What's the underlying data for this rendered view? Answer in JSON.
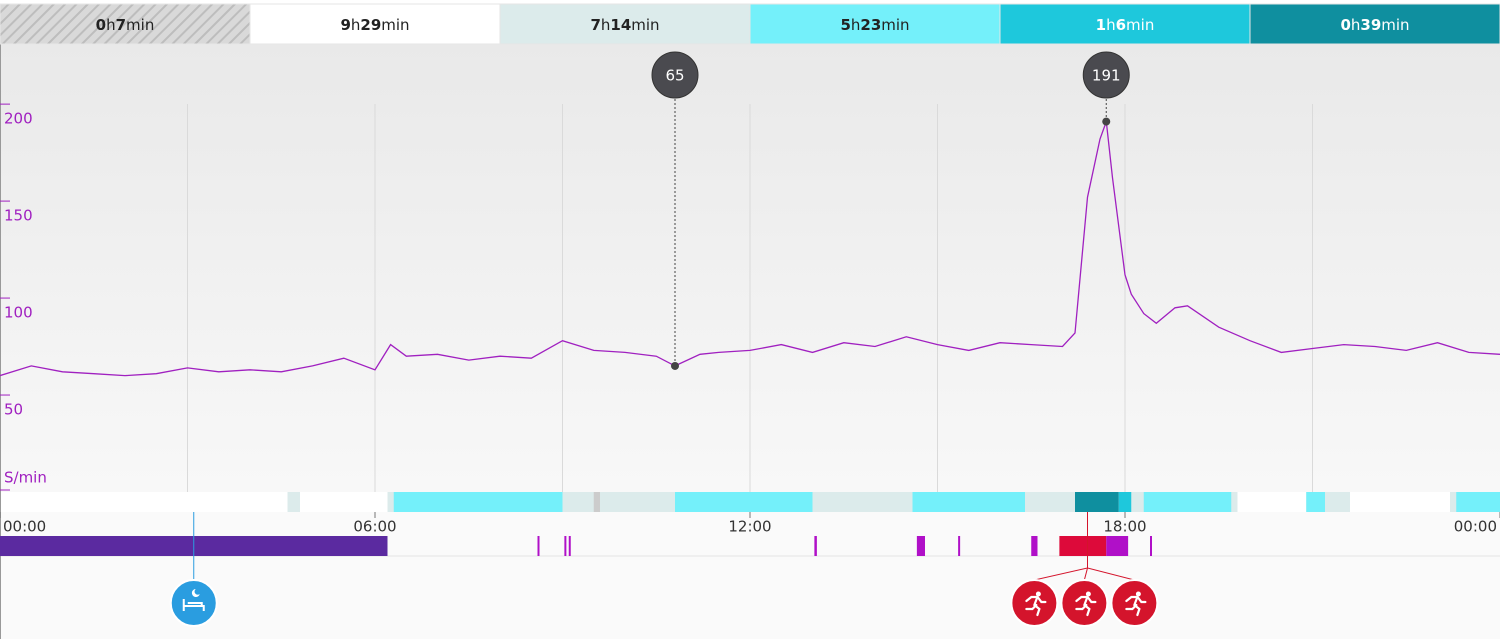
{
  "chart_data": {
    "type": "line",
    "zones": [
      {
        "label": "0h7min",
        "color": "hatch",
        "text": "#222"
      },
      {
        "label": "9h29min",
        "color": "#ffffff",
        "text": "#222"
      },
      {
        "label": "7h14min",
        "color": "#dcebeb",
        "text": "#222"
      },
      {
        "label": "5h23min",
        "color": "#74f0fa",
        "text": "#222"
      },
      {
        "label": "1h6min",
        "color": "#1ec8dc",
        "text": "#ffffff"
      },
      {
        "label": "0h39min",
        "color": "#0f8f9f",
        "text": "#ffffff"
      }
    ],
    "y_label": "S/min",
    "color": "#a020c0",
    "x": [
      0,
      0.5,
      1,
      1.5,
      2,
      2.5,
      3,
      3.5,
      4,
      4.5,
      5,
      5.5,
      6,
      6.25,
      6.5,
      7,
      7.5,
      8,
      8.5,
      9,
      9.5,
      10,
      10.5,
      10.8,
      11.2,
      11.5,
      12,
      12.5,
      13,
      13.5,
      14,
      14.5,
      15,
      15.5,
      16,
      16.5,
      17,
      17.2,
      17.4,
      17.6,
      17.7,
      17.8,
      18,
      18.1,
      18.3,
      18.5,
      18.8,
      19,
      19.5,
      20,
      20.5,
      21,
      21.5,
      22,
      22.5,
      23,
      23.5,
      24
    ],
    "values": [
      60,
      65,
      62,
      61,
      60,
      61,
      64,
      62,
      63,
      62,
      65,
      69,
      63,
      76,
      70,
      71,
      68,
      70,
      69,
      78,
      73,
      72,
      70,
      65,
      71,
      72,
      73,
      76,
      72,
      77,
      75,
      80,
      76,
      73,
      77,
      76,
      75,
      82,
      152,
      182,
      191,
      162,
      112,
      102,
      92,
      87,
      95,
      96,
      85,
      78,
      72,
      74,
      76,
      75,
      73,
      77,
      72,
      71
    ],
    "xlim": [
      0,
      24
    ],
    "xticks": [
      {
        "value": 0,
        "label": "00:00"
      },
      {
        "value": 6,
        "label": "06:00"
      },
      {
        "value": 12,
        "label": "12:00"
      },
      {
        "value": 18,
        "label": "18:00"
      },
      {
        "value": 24,
        "label": "00:00"
      }
    ],
    "ylim": [
      0,
      231
    ],
    "yticks": [
      50,
      100,
      150,
      200
    ],
    "markers": [
      {
        "x": 10.8,
        "value": 65
      },
      {
        "x": 17.7,
        "value": 191
      }
    ],
    "strip": [
      [
        4.6,
        4.8,
        "#dcebeb"
      ],
      [
        6.2,
        24,
        "#dcebeb"
      ],
      [
        6.3,
        9,
        "#74f0fa"
      ],
      [
        9.5,
        9.6,
        "#cccccc"
      ],
      [
        10.8,
        13,
        "#74f0fa"
      ],
      [
        14.6,
        16.4,
        "#74f0fa"
      ],
      [
        17.2,
        17.9,
        "#0f8f9f"
      ],
      [
        17.9,
        18.1,
        "#1ec8dc"
      ],
      [
        18.3,
        19.7,
        "#74f0fa"
      ],
      [
        19.8,
        20.9,
        "#ffffff"
      ],
      [
        20.9,
        21.2,
        "#74f0fa"
      ],
      [
        21.6,
        23.2,
        "#ffffff"
      ],
      [
        23.3,
        24,
        "#74f0fa"
      ]
    ],
    "events": [
      [
        0,
        6.2,
        "#5b2aa0"
      ],
      [
        8.6,
        8.63,
        "#b010c8"
      ],
      [
        9.03,
        9.06,
        "#b010c8"
      ],
      [
        9.1,
        9.13,
        "#b010c8"
      ],
      [
        13.03,
        13.07,
        "#b010c8"
      ],
      [
        14.67,
        14.8,
        "#b010c8"
      ],
      [
        15.33,
        15.36,
        "#b010c8"
      ],
      [
        16.5,
        16.6,
        "#b010c8"
      ],
      [
        16.95,
        17.7,
        "#dd0a3a"
      ],
      [
        17.7,
        18.05,
        "#b010c8"
      ],
      [
        18.4,
        18.43,
        "#b010c8"
      ]
    ],
    "icons": [
      {
        "x": 3.1,
        "kind": "sleep"
      },
      {
        "x": 16.55,
        "kind": "run"
      },
      {
        "x": 17.35,
        "kind": "run"
      },
      {
        "x": 18.15,
        "kind": "run"
      }
    ]
  }
}
